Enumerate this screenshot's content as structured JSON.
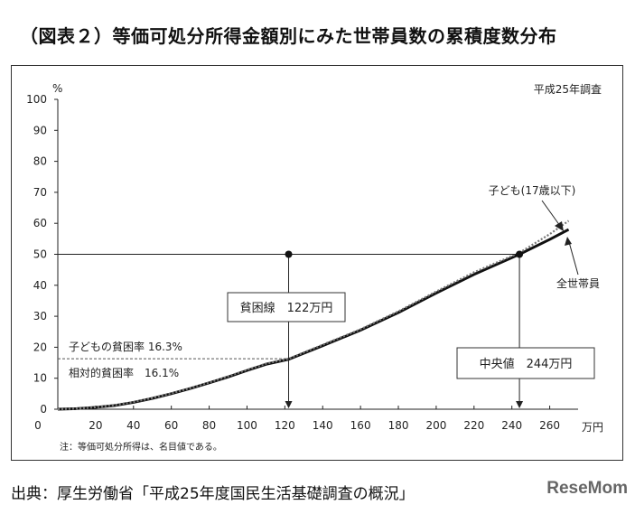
{
  "title": "（図表２）等価可処分所得金額別にみた世帯員数の累積度数分布",
  "source": "出典：厚生労働省「平成25年度国民生活基礎調査の概況」",
  "watermark": "ReseMom",
  "chart_data": {
    "type": "line",
    "survey_label": "平成25年調査",
    "note": "注：等価可処分所得は、名目値である。",
    "ylabel": "%",
    "xlabel": "万円",
    "xlim": [
      0,
      275
    ],
    "ylim": [
      0,
      100
    ],
    "xticks": [
      20,
      40,
      60,
      80,
      100,
      120,
      140,
      160,
      180,
      200,
      220,
      240,
      260
    ],
    "yticks": [
      0,
      10,
      20,
      30,
      40,
      50,
      60,
      70,
      80,
      90,
      100
    ],
    "series": [
      {
        "name": "全世帯員",
        "style": "solid",
        "color": "#111111",
        "x": [
          0,
          10,
          20,
          30,
          40,
          50,
          60,
          70,
          80,
          90,
          100,
          110,
          122,
          140,
          160,
          180,
          200,
          220,
          244,
          260,
          270
        ],
        "y": [
          0,
          0.2,
          0.6,
          1.2,
          2.2,
          3.5,
          5.0,
          6.7,
          8.5,
          10.4,
          12.5,
          14.5,
          16.1,
          20.5,
          25.5,
          31.2,
          37.5,
          43.5,
          50.0,
          54.8,
          58.0
        ]
      },
      {
        "name": "子ども(17歳以下)",
        "style": "dotted",
        "color": "#777777",
        "x": [
          0,
          10,
          20,
          30,
          40,
          50,
          60,
          70,
          80,
          90,
          100,
          110,
          122,
          140,
          160,
          180,
          200,
          220,
          244,
          260,
          270
        ],
        "y": [
          0,
          0.2,
          0.6,
          1.3,
          2.3,
          3.6,
          5.1,
          6.8,
          8.6,
          10.6,
          12.7,
          14.7,
          16.3,
          20.8,
          25.8,
          31.6,
          38.0,
          44.2,
          50.5,
          56.5,
          60.8
        ]
      }
    ],
    "annotations": {
      "poverty_line_label": "貧困線　122万円",
      "poverty_line_x": 122,
      "median_label": "中央値　244万円",
      "median_x": 244,
      "median_y": 50,
      "child_poverty_label": "子どもの貧困率 16.3%",
      "child_poverty_rate": 16.3,
      "relative_poverty_label": "相対的貧困率　16.1%",
      "relative_poverty_rate": 16.1,
      "child_series_label": "子ども(17歳以下)",
      "all_series_label": "全世帯員"
    }
  }
}
